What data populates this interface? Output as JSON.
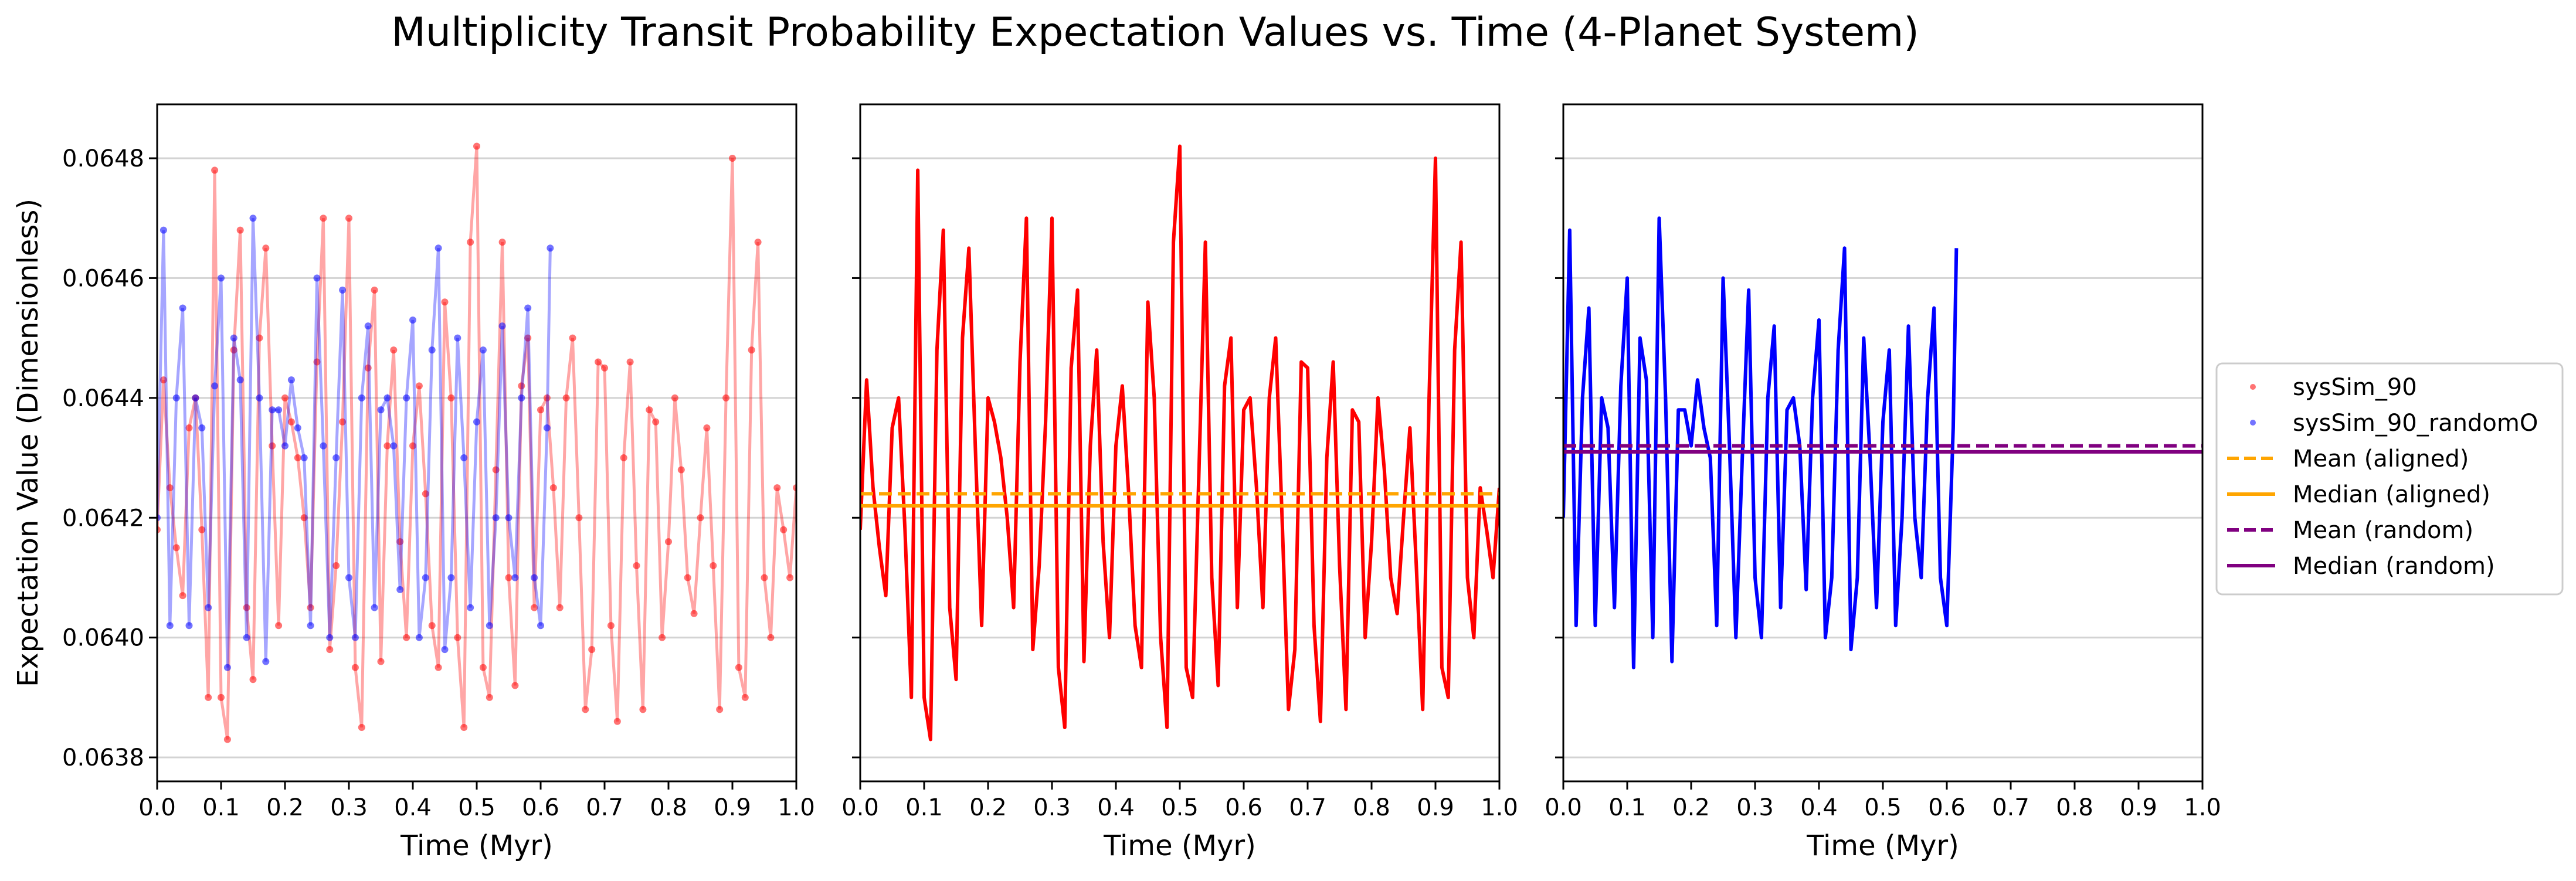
{
  "figure": {
    "title": "Multiplicity Transit Probability Expectation Values vs. Time (4-Planet System)"
  },
  "colors": {
    "aligned": "#ff0000",
    "random": "#0000ff",
    "mean_aligned": "#ffa500",
    "median_aligned": "#ffa500",
    "mean_random": "#800080",
    "median_random": "#800080",
    "grid": "#d3d3d3"
  },
  "chart_data": [
    {
      "type": "scatter",
      "panel": "left",
      "xlabel": "Time (Myr)",
      "ylabel": "Expectation Value (Dimensionless)",
      "xlim": [
        0.0,
        1.0
      ],
      "ylim": [
        0.06376,
        0.06489
      ],
      "xticks": [
        "0.0",
        "0.1",
        "0.2",
        "0.3",
        "0.4",
        "0.5",
        "0.6",
        "0.7",
        "0.8",
        "0.9",
        "1.0"
      ],
      "yticks": [
        "0.0638",
        "0.0640",
        "0.0642",
        "0.0644",
        "0.0646",
        "0.0648"
      ],
      "grid": "y",
      "series": [
        {
          "name": "sysSim_90",
          "color": "#ff0000",
          "style": "points",
          "x": [
            0.0,
            0.01,
            0.02,
            0.03,
            0.04,
            0.05,
            0.06,
            0.07,
            0.08,
            0.09,
            0.1,
            0.11,
            0.12,
            0.13,
            0.14,
            0.15,
            0.16,
            0.17,
            0.18,
            0.19,
            0.2,
            0.21,
            0.22,
            0.23,
            0.24,
            0.25,
            0.26,
            0.27,
            0.28,
            0.29,
            0.3,
            0.31,
            0.32,
            0.33,
            0.34,
            0.35,
            0.36,
            0.37,
            0.38,
            0.39,
            0.4,
            0.41,
            0.42,
            0.43,
            0.44,
            0.45,
            0.46,
            0.47,
            0.48,
            0.49,
            0.5,
            0.51,
            0.52,
            0.53,
            0.54,
            0.55,
            0.56,
            0.57,
            0.58,
            0.59,
            0.6,
            0.61,
            0.62,
            0.63,
            0.64,
            0.65,
            0.66,
            0.67,
            0.68,
            0.69,
            0.7,
            0.71,
            0.72,
            0.73,
            0.74,
            0.75,
            0.76,
            0.77,
            0.78,
            0.79,
            0.8,
            0.81,
            0.82,
            0.83,
            0.84,
            0.85,
            0.86,
            0.87,
            0.88,
            0.89,
            0.9,
            0.91,
            0.92,
            0.93,
            0.94,
            0.95,
            0.96,
            0.97,
            0.98,
            0.99,
            1.0
          ],
          "y": [
            0.06418,
            0.06443,
            0.06425,
            0.06415,
            0.06407,
            0.06435,
            0.0644,
            0.06418,
            0.0639,
            0.06478,
            0.0639,
            0.06383,
            0.06448,
            0.06468,
            0.06405,
            0.06393,
            0.0645,
            0.06465,
            0.06432,
            0.06402,
            0.0644,
            0.06436,
            0.0643,
            0.0642,
            0.06405,
            0.06446,
            0.0647,
            0.06398,
            0.06412,
            0.06436,
            0.0647,
            0.06395,
            0.06385,
            0.06445,
            0.06458,
            0.06396,
            0.06432,
            0.06448,
            0.06416,
            0.064,
            0.06432,
            0.06442,
            0.06424,
            0.06402,
            0.06395,
            0.06456,
            0.0644,
            0.064,
            0.06385,
            0.06466,
            0.06482,
            0.06395,
            0.0639,
            0.06428,
            0.06466,
            0.0641,
            0.06392,
            0.06442,
            0.0645,
            0.06405,
            0.06438,
            0.0644,
            0.06425,
            0.06405,
            0.0644,
            0.0645,
            0.0642,
            0.06388,
            0.06398,
            0.06446,
            0.06445,
            0.06402,
            0.06386,
            0.0643,
            0.06446,
            0.06412,
            0.06388,
            0.06438,
            0.06436,
            0.064,
            0.06416,
            0.0644,
            0.06428,
            0.0641,
            0.06404,
            0.0642,
            0.06435,
            0.06412,
            0.06388,
            0.0644,
            0.0648,
            0.06395,
            0.0639,
            0.06448,
            0.06466,
            0.0641,
            0.064,
            0.06425,
            0.06418,
            0.0641,
            0.06425
          ]
        },
        {
          "name": "sysSim_90_randomO",
          "color": "#0000ff",
          "style": "points",
          "x": [
            0.0,
            0.01,
            0.02,
            0.03,
            0.04,
            0.05,
            0.06,
            0.07,
            0.08,
            0.09,
            0.1,
            0.11,
            0.12,
            0.13,
            0.14,
            0.15,
            0.16,
            0.17,
            0.18,
            0.19,
            0.2,
            0.21,
            0.22,
            0.23,
            0.24,
            0.25,
            0.26,
            0.27,
            0.28,
            0.29,
            0.3,
            0.31,
            0.32,
            0.33,
            0.34,
            0.35,
            0.36,
            0.37,
            0.38,
            0.39,
            0.4,
            0.41,
            0.42,
            0.43,
            0.44,
            0.45,
            0.46,
            0.47,
            0.48,
            0.49,
            0.5,
            0.51,
            0.52,
            0.53,
            0.54,
            0.55,
            0.56,
            0.57,
            0.58,
            0.59,
            0.6,
            0.61,
            0.615
          ],
          "y": [
            0.0642,
            0.06468,
            0.06402,
            0.0644,
            0.06455,
            0.06402,
            0.0644,
            0.06435,
            0.06405,
            0.06442,
            0.0646,
            0.06395,
            0.0645,
            0.06443,
            0.064,
            0.0647,
            0.0644,
            0.06396,
            0.06438,
            0.06438,
            0.06432,
            0.06443,
            0.06435,
            0.0643,
            0.06402,
            0.0646,
            0.06432,
            0.064,
            0.0643,
            0.06458,
            0.0641,
            0.064,
            0.0644,
            0.06452,
            0.06405,
            0.06438,
            0.0644,
            0.06432,
            0.06408,
            0.0644,
            0.06453,
            0.064,
            0.0641,
            0.06448,
            0.06465,
            0.06398,
            0.0641,
            0.0645,
            0.0643,
            0.06405,
            0.06436,
            0.06448,
            0.06402,
            0.0642,
            0.06452,
            0.0642,
            0.0641,
            0.0644,
            0.06455,
            0.0641,
            0.06402,
            0.06435,
            0.06465
          ]
        }
      ]
    },
    {
      "type": "line",
      "panel": "middle",
      "xlabel": "Time (Myr)",
      "xlim": [
        0.0,
        1.0
      ],
      "ylim": [
        0.06376,
        0.06489
      ],
      "xticks": [
        "0.0",
        "0.1",
        "0.2",
        "0.3",
        "0.4",
        "0.5",
        "0.6",
        "0.7",
        "0.8",
        "0.9",
        "1.0"
      ],
      "grid": "y",
      "series": [
        {
          "name": "sysSim_90",
          "color": "#ff0000",
          "style": "line",
          "x": [
            0.0,
            0.01,
            0.02,
            0.03,
            0.04,
            0.05,
            0.06,
            0.07,
            0.08,
            0.09,
            0.1,
            0.11,
            0.12,
            0.13,
            0.14,
            0.15,
            0.16,
            0.17,
            0.18,
            0.19,
            0.2,
            0.21,
            0.22,
            0.23,
            0.24,
            0.25,
            0.26,
            0.27,
            0.28,
            0.29,
            0.3,
            0.31,
            0.32,
            0.33,
            0.34,
            0.35,
            0.36,
            0.37,
            0.38,
            0.39,
            0.4,
            0.41,
            0.42,
            0.43,
            0.44,
            0.45,
            0.46,
            0.47,
            0.48,
            0.49,
            0.5,
            0.51,
            0.52,
            0.53,
            0.54,
            0.55,
            0.56,
            0.57,
            0.58,
            0.59,
            0.6,
            0.61,
            0.62,
            0.63,
            0.64,
            0.65,
            0.66,
            0.67,
            0.68,
            0.69,
            0.7,
            0.71,
            0.72,
            0.73,
            0.74,
            0.75,
            0.76,
            0.77,
            0.78,
            0.79,
            0.8,
            0.81,
            0.82,
            0.83,
            0.84,
            0.85,
            0.86,
            0.87,
            0.88,
            0.89,
            0.9,
            0.91,
            0.92,
            0.93,
            0.94,
            0.95,
            0.96,
            0.97,
            0.98,
            0.99,
            1.0
          ],
          "y": [
            0.06418,
            0.06443,
            0.06425,
            0.06415,
            0.06407,
            0.06435,
            0.0644,
            0.06418,
            0.0639,
            0.06478,
            0.0639,
            0.06383,
            0.06448,
            0.06468,
            0.06405,
            0.06393,
            0.0645,
            0.06465,
            0.06432,
            0.06402,
            0.0644,
            0.06436,
            0.0643,
            0.0642,
            0.06405,
            0.06446,
            0.0647,
            0.06398,
            0.06412,
            0.06436,
            0.0647,
            0.06395,
            0.06385,
            0.06445,
            0.06458,
            0.06396,
            0.06432,
            0.06448,
            0.06416,
            0.064,
            0.06432,
            0.06442,
            0.06424,
            0.06402,
            0.06395,
            0.06456,
            0.0644,
            0.064,
            0.06385,
            0.06466,
            0.06482,
            0.06395,
            0.0639,
            0.06428,
            0.06466,
            0.0641,
            0.06392,
            0.06442,
            0.0645,
            0.06405,
            0.06438,
            0.0644,
            0.06425,
            0.06405,
            0.0644,
            0.0645,
            0.0642,
            0.06388,
            0.06398,
            0.06446,
            0.06445,
            0.06402,
            0.06386,
            0.0643,
            0.06446,
            0.06412,
            0.06388,
            0.06438,
            0.06436,
            0.064,
            0.06416,
            0.0644,
            0.06428,
            0.0641,
            0.06404,
            0.0642,
            0.06435,
            0.06412,
            0.06388,
            0.0644,
            0.0648,
            0.06395,
            0.0639,
            0.06448,
            0.06466,
            0.0641,
            0.064,
            0.06425,
            0.06418,
            0.0641,
            0.06425
          ]
        }
      ],
      "hlines": [
        {
          "name": "Mean (aligned)",
          "y": 0.06424,
          "color": "#ffa500",
          "dash": true
        },
        {
          "name": "Median (aligned)",
          "y": 0.06422,
          "color": "#ffa500",
          "dash": false
        }
      ]
    },
    {
      "type": "line",
      "panel": "right",
      "xlabel": "Time (Myr)",
      "xlim": [
        0.0,
        1.0
      ],
      "ylim": [
        0.06376,
        0.06489
      ],
      "xticks": [
        "0.0",
        "0.1",
        "0.2",
        "0.3",
        "0.4",
        "0.5",
        "0.6",
        "0.7",
        "0.8",
        "0.9",
        "1.0"
      ],
      "grid": "y",
      "series": [
        {
          "name": "sysSim_90_randomO",
          "color": "#0000ff",
          "style": "line",
          "x": [
            0.0,
            0.01,
            0.02,
            0.03,
            0.04,
            0.05,
            0.06,
            0.07,
            0.08,
            0.09,
            0.1,
            0.11,
            0.12,
            0.13,
            0.14,
            0.15,
            0.16,
            0.17,
            0.18,
            0.19,
            0.2,
            0.21,
            0.22,
            0.23,
            0.24,
            0.25,
            0.26,
            0.27,
            0.28,
            0.29,
            0.3,
            0.31,
            0.32,
            0.33,
            0.34,
            0.35,
            0.36,
            0.37,
            0.38,
            0.39,
            0.4,
            0.41,
            0.42,
            0.43,
            0.44,
            0.45,
            0.46,
            0.47,
            0.48,
            0.49,
            0.5,
            0.51,
            0.52,
            0.53,
            0.54,
            0.55,
            0.56,
            0.57,
            0.58,
            0.59,
            0.6,
            0.61,
            0.615
          ],
          "y": [
            0.0642,
            0.06468,
            0.06402,
            0.0644,
            0.06455,
            0.06402,
            0.0644,
            0.06435,
            0.06405,
            0.06442,
            0.0646,
            0.06395,
            0.0645,
            0.06443,
            0.064,
            0.0647,
            0.0644,
            0.06396,
            0.06438,
            0.06438,
            0.06432,
            0.06443,
            0.06435,
            0.0643,
            0.06402,
            0.0646,
            0.06432,
            0.064,
            0.0643,
            0.06458,
            0.0641,
            0.064,
            0.0644,
            0.06452,
            0.06405,
            0.06438,
            0.0644,
            0.06432,
            0.06408,
            0.0644,
            0.06453,
            0.064,
            0.0641,
            0.06448,
            0.06465,
            0.06398,
            0.0641,
            0.0645,
            0.0643,
            0.06405,
            0.06436,
            0.06448,
            0.06402,
            0.0642,
            0.06452,
            0.0642,
            0.0641,
            0.0644,
            0.06455,
            0.0641,
            0.06402,
            0.06435,
            0.06465
          ]
        }
      ],
      "hlines": [
        {
          "name": "Mean (random)",
          "y": 0.06432,
          "color": "#800080",
          "dash": true
        },
        {
          "name": "Median (random)",
          "y": 0.06431,
          "color": "#800080",
          "dash": false
        }
      ]
    }
  ],
  "legend": {
    "placement": "right",
    "entries": [
      {
        "label": "sysSim_90",
        "color": "#ff0000",
        "marker": "point"
      },
      {
        "label": "sysSim_90_randomO",
        "color": "#0000ff",
        "marker": "point"
      },
      {
        "label": "Mean (aligned)",
        "color": "#ffa500",
        "marker": "dashed"
      },
      {
        "label": "Median (aligned)",
        "color": "#ffa500",
        "marker": "solid"
      },
      {
        "label": "Mean (random)",
        "color": "#800080",
        "marker": "dashed"
      },
      {
        "label": "Median (random)",
        "color": "#800080",
        "marker": "solid"
      }
    ]
  }
}
